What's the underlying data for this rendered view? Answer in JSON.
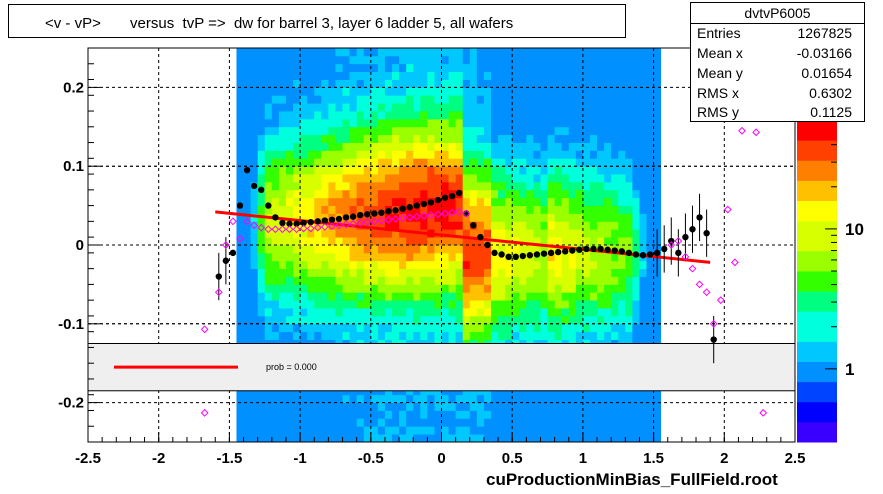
{
  "title": "<v - vP>       versus  tvP =>  dw for barrel 3, layer 6 ladder 5, all wafers",
  "footer": "cuProductionMinBias_FullField.root",
  "stats": {
    "name": "dvtvP6005",
    "entries_label": "Entries",
    "entries": "1267825",
    "meanx_label": "Mean x",
    "meanx": "-0.03166",
    "meany_label": "Mean y",
    "meany": "0.01654",
    "rmsx_label": "RMS x",
    "rmsx": "0.6302",
    "rmsy_label": "RMS y",
    "rmsy": "0.1125"
  },
  "legend": {
    "fit_label": "prob = 0.000",
    "fit_color": "#ff0000"
  },
  "chart_data": {
    "type": "heatmap",
    "xlim": [
      -2.5,
      2.5
    ],
    "ylim": [
      -0.25,
      0.25
    ],
    "x_ticks": [
      "-2.5",
      "-2",
      "-1.5",
      "-1",
      "-0.5",
      "0",
      "0.5",
      "1",
      "1.5",
      "2",
      "2.5"
    ],
    "y_ticks": [
      "-0.2",
      "-0.1",
      "0",
      "0.1",
      "0.2"
    ],
    "z_ticks": [
      "1",
      "10"
    ],
    "z_scale": "log",
    "grid": true,
    "color_scale": [
      "#3a00ff",
      "#0000ff",
      "#0044ff",
      "#0090ff",
      "#00c8ff",
      "#00ffdc",
      "#00ff80",
      "#33ff00",
      "#9cff00",
      "#d8ff00",
      "#ffff00",
      "#ffc000",
      "#ff8000",
      "#ff4000",
      "#ff0000"
    ],
    "series": [
      {
        "name": "mean",
        "marker": "filled-circle",
        "color": "#000000",
        "x": [
          -1.575,
          -1.525,
          -1.475,
          -1.425,
          -1.375,
          -1.325,
          -1.275,
          -1.225,
          -1.175,
          -1.125,
          -1.075,
          -1.025,
          -0.975,
          -0.925,
          -0.875,
          -0.825,
          -0.775,
          -0.725,
          -0.675,
          -0.625,
          -0.575,
          -0.525,
          -0.475,
          -0.425,
          -0.375,
          -0.325,
          -0.275,
          -0.225,
          -0.175,
          -0.125,
          -0.075,
          -0.025,
          0.025,
          0.075,
          0.125,
          0.175,
          0.225,
          0.275,
          0.325,
          0.375,
          0.425,
          0.475,
          0.525,
          0.575,
          0.625,
          0.675,
          0.725,
          0.775,
          0.825,
          0.875,
          0.925,
          0.975,
          1.025,
          1.075,
          1.125,
          1.175,
          1.225,
          1.275,
          1.325,
          1.375,
          1.425,
          1.475,
          1.525,
          1.575,
          1.625,
          1.675,
          1.725,
          1.775,
          1.825,
          1.875,
          1.925
        ],
        "y": [
          -0.04,
          -0.02,
          -0.01,
          0.05,
          0.095,
          0.075,
          0.07,
          0.05,
          0.035,
          0.028,
          0.027,
          0.027,
          0.028,
          0.029,
          0.03,
          0.031,
          0.032,
          0.033,
          0.035,
          0.036,
          0.038,
          0.039,
          0.04,
          0.041,
          0.043,
          0.044,
          0.046,
          0.048,
          0.05,
          0.052,
          0.054,
          0.057,
          0.06,
          0.062,
          0.066,
          0.04,
          0.025,
          0.01,
          0.0,
          -0.01,
          -0.012,
          -0.015,
          -0.015,
          -0.014,
          -0.013,
          -0.012,
          -0.011,
          -0.01,
          -0.009,
          -0.008,
          -0.007,
          -0.006,
          -0.005,
          -0.005,
          -0.005,
          -0.006,
          -0.007,
          -0.008,
          -0.01,
          -0.012,
          -0.013,
          -0.012,
          -0.01,
          -0.005,
          0.005,
          -0.01,
          0.01,
          0.02,
          0.035,
          0.015,
          -0.12
        ]
      },
      {
        "name": "median",
        "marker": "open-diamond",
        "color": "#ff00ff",
        "x": [
          -1.675,
          -1.575,
          -1.525,
          -1.475,
          -1.425,
          -1.375,
          -1.325,
          -1.275,
          -1.225,
          -1.175,
          -1.125,
          -1.075,
          -1.025,
          -0.975,
          -0.925,
          -0.875,
          -0.825,
          -0.775,
          -0.725,
          -0.675,
          -0.625,
          -0.575,
          -0.525,
          -0.475,
          -0.425,
          -0.375,
          -0.325,
          -0.275,
          -0.225,
          -0.175,
          -0.125,
          -0.075,
          -0.025,
          0.025,
          0.075,
          0.125,
          0.175,
          1.625,
          1.675,
          1.725,
          1.775,
          1.825,
          1.875,
          1.925,
          1.975,
          2.025,
          2.075,
          2.125,
          2.225,
          -1.675,
          2.275
        ],
        "y": [
          -0.107,
          -0.06,
          0.0,
          0.03,
          0.008,
          0.03,
          0.025,
          0.022,
          0.02,
          0.02,
          0.02,
          0.02,
          0.02,
          0.021,
          0.021,
          0.022,
          0.023,
          0.024,
          0.025,
          0.026,
          0.027,
          0.028,
          0.029,
          0.03,
          0.031,
          0.032,
          0.033,
          0.034,
          0.035,
          0.036,
          0.037,
          0.038,
          0.039,
          0.04,
          0.041,
          0.042,
          0.04,
          0.0,
          0.005,
          -0.015,
          -0.03,
          -0.05,
          -0.06,
          -0.1,
          -0.07,
          0.045,
          -0.022,
          0.145,
          0.143,
          -0.213,
          -0.213
        ]
      }
    ],
    "fit": {
      "x": [
        -1.6,
        1.9
      ],
      "y": [
        0.042,
        -0.022
      ]
    }
  }
}
